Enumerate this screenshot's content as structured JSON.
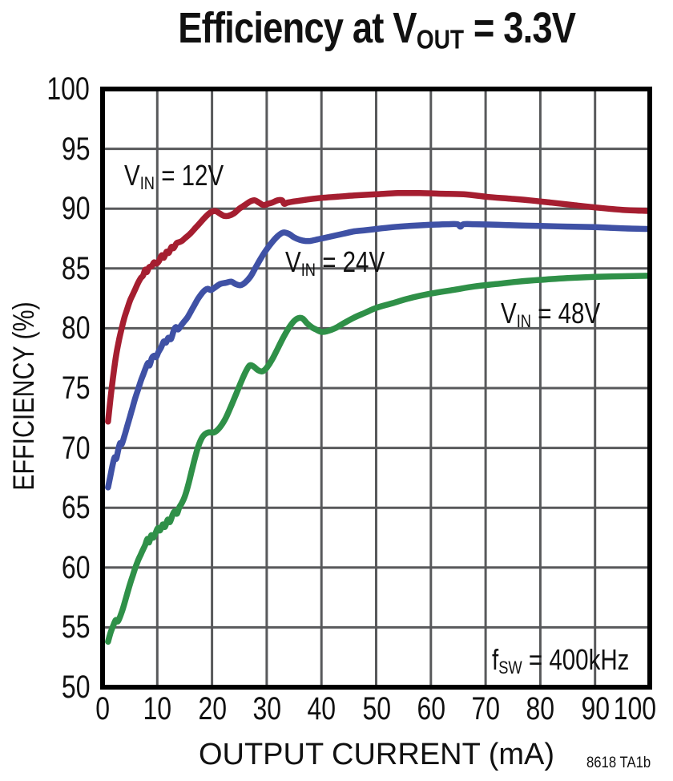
{
  "title": {
    "pre": "Efficiency at V",
    "sub": "OUT",
    "post": " = 3.3V"
  },
  "corner_note": "8618 TA1b",
  "annotations": {
    "vin12": {
      "pre": "V",
      "sub": "IN",
      "post": " = 12V"
    },
    "vin24": {
      "pre": "V",
      "sub": "IN",
      "post": " = 24V"
    },
    "vin48": {
      "pre": "V",
      "sub": "IN",
      "post": " = 48V"
    },
    "fsw": {
      "pre": "f",
      "sub": "SW",
      "post": " = 400kHz"
    }
  },
  "layout_colors": {
    "grid": "#58595b",
    "frame": "#000000",
    "text": "#111111",
    "background": "#ffffff"
  },
  "chart_data": {
    "type": "line",
    "title": "Efficiency at VOUT = 3.3V",
    "xlabel": "OUTPUT CURRENT (mA)",
    "ylabel": "EFFICIENCY (%)",
    "xlim": [
      0,
      100
    ],
    "ylim": [
      50,
      100
    ],
    "x_ticks": [
      0,
      10,
      20,
      30,
      40,
      50,
      60,
      70,
      80,
      90,
      100
    ],
    "y_ticks": [
      50,
      55,
      60,
      65,
      70,
      75,
      80,
      85,
      90,
      95,
      100
    ],
    "grid": true,
    "legend_position": "inline-labels",
    "series": [
      {
        "name": "VIN = 12V",
        "color": "#a51e30",
        "points": [
          [
            1,
            72.2
          ],
          [
            1.5,
            74.3
          ],
          [
            2,
            76.2
          ],
          [
            2.5,
            77.8
          ],
          [
            3,
            79.0
          ],
          [
            3.5,
            80.0
          ],
          [
            4,
            80.9
          ],
          [
            4.5,
            81.6
          ],
          [
            5,
            82.3
          ],
          [
            5.5,
            82.8
          ],
          [
            6,
            83.3
          ],
          [
            6.5,
            83.8
          ],
          [
            7,
            84.2
          ],
          [
            7.4,
            84.4
          ],
          [
            7.8,
            84.9
          ],
          [
            8.1,
            84.7
          ],
          [
            8.5,
            85.1
          ],
          [
            9,
            85.2
          ],
          [
            9.4,
            85.5
          ],
          [
            9.8,
            85.4
          ],
          [
            10.3,
            85.6
          ],
          [
            10.8,
            86.1
          ],
          [
            11.2,
            85.9
          ],
          [
            11.7,
            86.4
          ],
          [
            12.1,
            86.3
          ],
          [
            12.6,
            86.8
          ],
          [
            13,
            86.7
          ],
          [
            13.5,
            87.1
          ],
          [
            14,
            87.2
          ],
          [
            14.5,
            87.3
          ],
          [
            15,
            87.5
          ],
          [
            16,
            87.9
          ],
          [
            17,
            88.4
          ],
          [
            18,
            88.9
          ],
          [
            19,
            89.4
          ],
          [
            19.8,
            89.7
          ],
          [
            20.6,
            89.8
          ],
          [
            21.4,
            89.6
          ],
          [
            22.2,
            89.4
          ],
          [
            23,
            89.4
          ],
          [
            24,
            89.6
          ],
          [
            25,
            90.0
          ],
          [
            26,
            90.3
          ],
          [
            27,
            90.6
          ],
          [
            27.8,
            90.7
          ],
          [
            28.6,
            90.5
          ],
          [
            29.4,
            90.3
          ],
          [
            30.2,
            90.4
          ],
          [
            31,
            90.5
          ],
          [
            32,
            90.7
          ],
          [
            32.8,
            90.7
          ],
          [
            33.2,
            90.4
          ],
          [
            33.8,
            90.5
          ],
          [
            35,
            90.6
          ],
          [
            36.5,
            90.7
          ],
          [
            38,
            90.8
          ],
          [
            40,
            90.9
          ],
          [
            43,
            91.0
          ],
          [
            46,
            91.1
          ],
          [
            50,
            91.2
          ],
          [
            54,
            91.3
          ],
          [
            58,
            91.3
          ],
          [
            62,
            91.25
          ],
          [
            66,
            91.2
          ],
          [
            70,
            91.0
          ],
          [
            74,
            90.85
          ],
          [
            78,
            90.7
          ],
          [
            82,
            90.5
          ],
          [
            86,
            90.3
          ],
          [
            90,
            90.1
          ],
          [
            95,
            89.9
          ],
          [
            100,
            89.8
          ]
        ]
      },
      {
        "name": "VIN = 24V",
        "color": "#3f51a5",
        "points": [
          [
            1,
            66.7
          ],
          [
            1.4,
            67.6
          ],
          [
            1.8,
            68.5
          ],
          [
            2.2,
            69.2
          ],
          [
            2.5,
            69.1
          ],
          [
            2.9,
            69.9
          ],
          [
            3.2,
            70.4
          ],
          [
            3.5,
            70.3
          ],
          [
            4,
            71.0
          ],
          [
            4.5,
            71.8
          ],
          [
            5,
            72.6
          ],
          [
            5.5,
            73.4
          ],
          [
            6,
            74.2
          ],
          [
            6.5,
            74.9
          ],
          [
            7,
            75.6
          ],
          [
            7.5,
            76.2
          ],
          [
            7.9,
            76.7
          ],
          [
            8.3,
            77.1
          ],
          [
            8.6,
            76.9
          ],
          [
            9,
            77.5
          ],
          [
            9.4,
            77.7
          ],
          [
            9.8,
            77.6
          ],
          [
            10.2,
            78.0
          ],
          [
            10.7,
            78.4
          ],
          [
            11.2,
            78.9
          ],
          [
            11.6,
            78.8
          ],
          [
            12,
            79.2
          ],
          [
            12.5,
            79.1
          ],
          [
            13,
            79.8
          ],
          [
            13.4,
            80.1
          ],
          [
            13.8,
            79.9
          ],
          [
            14.3,
            80.2
          ],
          [
            14.8,
            80.5
          ],
          [
            15.5,
            80.9
          ],
          [
            16.5,
            81.7
          ],
          [
            17.5,
            82.5
          ],
          [
            18.5,
            83.1
          ],
          [
            19.2,
            83.3
          ],
          [
            19.8,
            83.2
          ],
          [
            20.5,
            83.4
          ],
          [
            21.5,
            83.7
          ],
          [
            22.5,
            83.8
          ],
          [
            23.5,
            83.9
          ],
          [
            24.3,
            83.7
          ],
          [
            25.2,
            83.6
          ],
          [
            26,
            83.8
          ],
          [
            27,
            84.3
          ],
          [
            28,
            85.1
          ],
          [
            29,
            85.9
          ],
          [
            30,
            86.6
          ],
          [
            31,
            87.2
          ],
          [
            32,
            87.7
          ],
          [
            33,
            88.0
          ],
          [
            34,
            87.9
          ],
          [
            35,
            87.6
          ],
          [
            36,
            87.4
          ],
          [
            37,
            87.3
          ],
          [
            38,
            87.3
          ],
          [
            39,
            87.4
          ],
          [
            40,
            87.5
          ],
          [
            42,
            87.7
          ],
          [
            44,
            87.9
          ],
          [
            46,
            88.1
          ],
          [
            48,
            88.2
          ],
          [
            50,
            88.3
          ],
          [
            53,
            88.45
          ],
          [
            56,
            88.55
          ],
          [
            60,
            88.65
          ],
          [
            63,
            88.7
          ],
          [
            64.8,
            88.7
          ],
          [
            65.4,
            88.5
          ],
          [
            66,
            88.7
          ],
          [
            68,
            88.7
          ],
          [
            72,
            88.65
          ],
          [
            76,
            88.6
          ],
          [
            80,
            88.55
          ],
          [
            85,
            88.5
          ],
          [
            90,
            88.45
          ],
          [
            95,
            88.35
          ],
          [
            100,
            88.3
          ]
        ]
      },
      {
        "name": "VIN = 48V",
        "color": "#2f9048",
        "points": [
          [
            1,
            53.8
          ],
          [
            1.5,
            54.6
          ],
          [
            2,
            55.2
          ],
          [
            2.4,
            55.6
          ],
          [
            2.8,
            55.5
          ],
          [
            3.2,
            55.9
          ],
          [
            3.6,
            56.4
          ],
          [
            4,
            57.0
          ],
          [
            4.5,
            57.8
          ],
          [
            5,
            58.6
          ],
          [
            5.5,
            59.3
          ],
          [
            6,
            60.0
          ],
          [
            6.5,
            60.6
          ],
          [
            7,
            61.1
          ],
          [
            7.4,
            61.5
          ],
          [
            7.8,
            61.9
          ],
          [
            8.2,
            62.4
          ],
          [
            8.5,
            62.1
          ],
          [
            8.9,
            62.7
          ],
          [
            9.3,
            62.5
          ],
          [
            9.7,
            62.9
          ],
          [
            10.1,
            63.3
          ],
          [
            10.5,
            63.1
          ],
          [
            11,
            63.6
          ],
          [
            11.4,
            63.4
          ],
          [
            11.9,
            64.0
          ],
          [
            12.3,
            63.8
          ],
          [
            12.8,
            64.4
          ],
          [
            13.2,
            64.7
          ],
          [
            13.6,
            64.5
          ],
          [
            14,
            65.0
          ],
          [
            14.5,
            65.4
          ],
          [
            15,
            65.9
          ],
          [
            15.6,
            66.8
          ],
          [
            16.2,
            67.9
          ],
          [
            16.8,
            69.0
          ],
          [
            17.4,
            70.0
          ],
          [
            18,
            70.7
          ],
          [
            18.6,
            71.1
          ],
          [
            19.4,
            71.3
          ],
          [
            20.4,
            71.3
          ],
          [
            21.4,
            71.7
          ],
          [
            22.4,
            72.4
          ],
          [
            23.4,
            73.4
          ],
          [
            24.4,
            74.5
          ],
          [
            25.4,
            75.6
          ],
          [
            26.2,
            76.4
          ],
          [
            26.9,
            76.9
          ],
          [
            27.6,
            76.8
          ],
          [
            28.4,
            76.5
          ],
          [
            29.2,
            76.4
          ],
          [
            30,
            76.7
          ],
          [
            31,
            77.4
          ],
          [
            32,
            78.3
          ],
          [
            33,
            79.2
          ],
          [
            34,
            80.0
          ],
          [
            35,
            80.6
          ],
          [
            35.8,
            80.85
          ],
          [
            36.6,
            80.8
          ],
          [
            37.4,
            80.4
          ],
          [
            38.2,
            80.1
          ],
          [
            39,
            79.9
          ],
          [
            40,
            79.7
          ],
          [
            41,
            79.75
          ],
          [
            42.5,
            80.0
          ],
          [
            44,
            80.4
          ],
          [
            46,
            80.9
          ],
          [
            48,
            81.3
          ],
          [
            50,
            81.7
          ],
          [
            53,
            82.1
          ],
          [
            56,
            82.5
          ],
          [
            60,
            82.9
          ],
          [
            64,
            83.2
          ],
          [
            68,
            83.5
          ],
          [
            72,
            83.7
          ],
          [
            76,
            83.9
          ],
          [
            80,
            84.05
          ],
          [
            85,
            84.2
          ],
          [
            90,
            84.3
          ],
          [
            95,
            84.35
          ],
          [
            100,
            84.4
          ]
        ]
      }
    ]
  }
}
